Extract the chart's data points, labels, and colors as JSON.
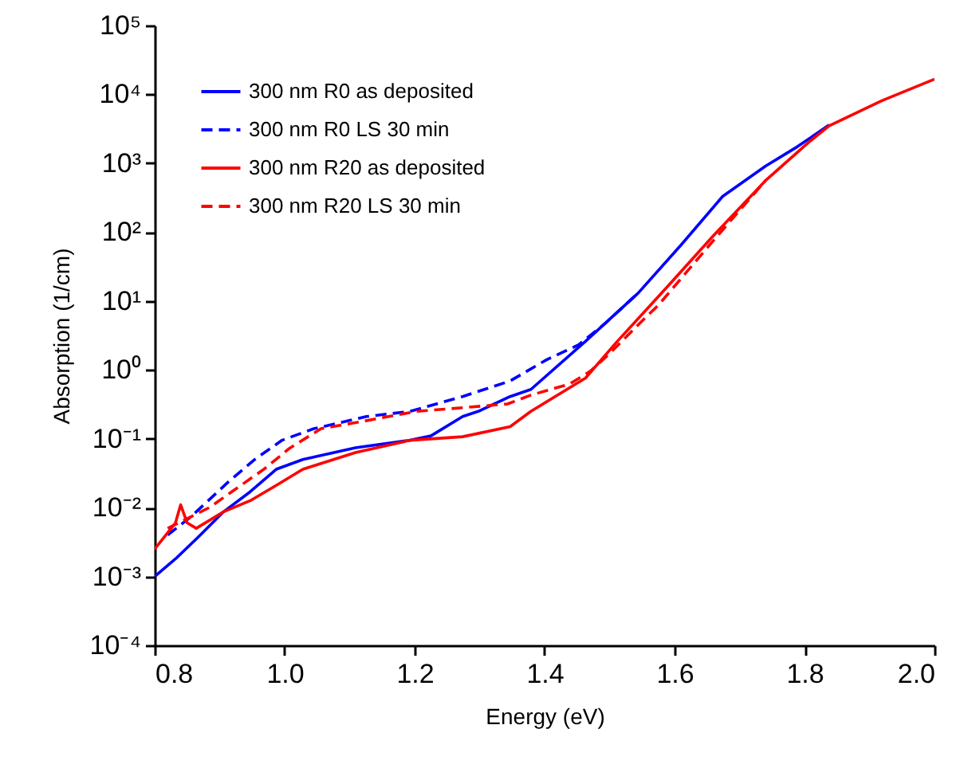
{
  "chart_data": {
    "type": "line",
    "xlabel": "Energy (eV)",
    "ylabel": "Absorption (1/cm)",
    "xlim": [
      0.8,
      2.0
    ],
    "xticks": [
      0.8,
      {
        "value": 1,
        "label": "1.0"
      },
      1.2,
      1.4,
      1.6,
      1.8,
      {
        "value": 2,
        "label": "2.0"
      }
    ],
    "ylim": [
      0.0001,
      100000
    ],
    "yticks": [
      {
        "value": 0.0001,
        "label": "10⁻⁴"
      },
      {
        "value": 0.001,
        "label": "10⁻³"
      },
      {
        "value": 0.01,
        "label": "10⁻²"
      },
      {
        "value": 0.1,
        "label": "10⁻¹"
      },
      {
        "value": 1,
        "label": "10⁰"
      },
      {
        "value": 10,
        "label": "10¹"
      },
      {
        "value": 100,
        "label": "10²"
      },
      {
        "value": 1000,
        "label": "10³"
      },
      {
        "value": 10000,
        "label": "10⁴"
      },
      {
        "value": 100000,
        "label": "10⁵"
      }
    ],
    "log": "y",
    "grid": false,
    "legend": "top left",
    "marker": "none",
    "series": [
      {
        "name": "300 nm R0 as deposited",
        "color": "#0000ff",
        "line_style": "solid",
        "x": [
          0.8,
          0.832,
          0.864,
          0.906,
          0.947,
          0.987,
          1.028,
          1.109,
          1.193,
          1.225,
          1.274,
          1.298,
          1.347,
          1.379,
          1.463,
          1.544,
          1.61,
          1.674,
          1.74,
          1.789,
          1.838
        ],
        "values": [
          0.001,
          0.0018,
          0.0035,
          0.0087,
          0.017,
          0.036,
          0.05,
          0.074,
          0.095,
          0.11,
          0.21,
          0.25,
          0.41,
          0.52,
          2.6,
          13,
          65,
          330,
          910,
          1740,
          3600
        ]
      },
      {
        "name": "300 nm R0 LS 30 min",
        "color": "#0000ff",
        "line_style": "dashed",
        "x": [
          0.82,
          0.856,
          0.912,
          0.954,
          0.996,
          1.045,
          1.126,
          1.193,
          1.274,
          1.347,
          1.403,
          1.452,
          1.494,
          1.544
        ],
        "values": [
          0.004,
          0.0074,
          0.023,
          0.05,
          0.095,
          0.14,
          0.21,
          0.25,
          0.41,
          0.69,
          1.4,
          2.3,
          4.8,
          13
        ]
      },
      {
        "name": "300 nm R20 as deposited",
        "color": "#ff0000",
        "line_style": "solid",
        "x": [
          0.8,
          0.832,
          0.84,
          0.85,
          0.864,
          0.906,
          0.947,
          0.987,
          1.028,
          1.109,
          1.193,
          1.274,
          1.347,
          1.379,
          1.463,
          1.512,
          1.586,
          1.659,
          1.74,
          1.806,
          1.838,
          1.919,
          2.0
        ],
        "values": [
          0.0025,
          0.006,
          0.011,
          0.006,
          0.005,
          0.0087,
          0.0126,
          0.021,
          0.036,
          0.063,
          0.095,
          0.107,
          0.15,
          0.25,
          0.76,
          2.6,
          15,
          87,
          560,
          2000,
          3500,
          8100,
          16600
        ]
      },
      {
        "name": "300 nm R20 LS 30 min",
        "color": "#ff0000",
        "line_style": "dashed",
        "x": [
          0.82,
          0.884,
          0.926,
          0.968,
          1.007,
          1.056,
          1.122,
          1.203,
          1.27,
          1.343,
          1.379,
          1.438,
          1.47,
          1.502,
          1.544,
          1.576,
          1.618,
          1.659,
          1.74
        ],
        "values": [
          0.005,
          0.01,
          0.019,
          0.036,
          0.072,
          0.14,
          0.18,
          0.25,
          0.28,
          0.32,
          0.43,
          0.62,
          0.95,
          1.8,
          4.5,
          8.9,
          26,
          74,
          560
        ]
      }
    ]
  }
}
